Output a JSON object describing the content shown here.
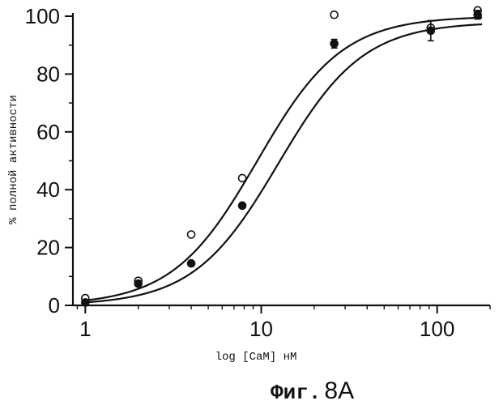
{
  "chart_data": {
    "type": "scatter",
    "xscale": "log",
    "xlim": [
      0.85,
      200
    ],
    "ylim": [
      0,
      100
    ],
    "xticks": [
      1,
      10,
      100
    ],
    "xtick_labels": [
      "1",
      "10",
      "100"
    ],
    "yticks": [
      0,
      20,
      40,
      60,
      80,
      100
    ],
    "ytick_labels": [
      "0",
      "20",
      "40",
      "60",
      "80",
      "100"
    ],
    "xlabel": "log [CaM] нМ",
    "ylabel": "% полной активности",
    "series": [
      {
        "marker": "open-circle",
        "x": [
          1,
          2,
          4,
          7.8,
          26,
          92,
          170
        ],
        "y": [
          2.5,
          8.5,
          24.5,
          44,
          100.5,
          96,
          102
        ],
        "fit": {
          "top": 100,
          "bottom": 0,
          "ec50": 9.5,
          "hill": 1.8
        }
      },
      {
        "marker": "filled-circle",
        "x": [
          1,
          2,
          4,
          7.8,
          26,
          92,
          170
        ],
        "y": [
          1,
          7.5,
          14.5,
          34.5,
          90.5,
          95,
          100.5
        ],
        "fit": {
          "top": 98,
          "bottom": 0,
          "ec50": 12.5,
          "hill": 1.8
        },
        "error_bars": [
          0,
          0,
          0,
          0,
          1.5,
          3.5,
          1.5
        ]
      }
    ],
    "grid": false
  },
  "caption": {
    "prefix": "Фиг.",
    "number": "8A"
  }
}
